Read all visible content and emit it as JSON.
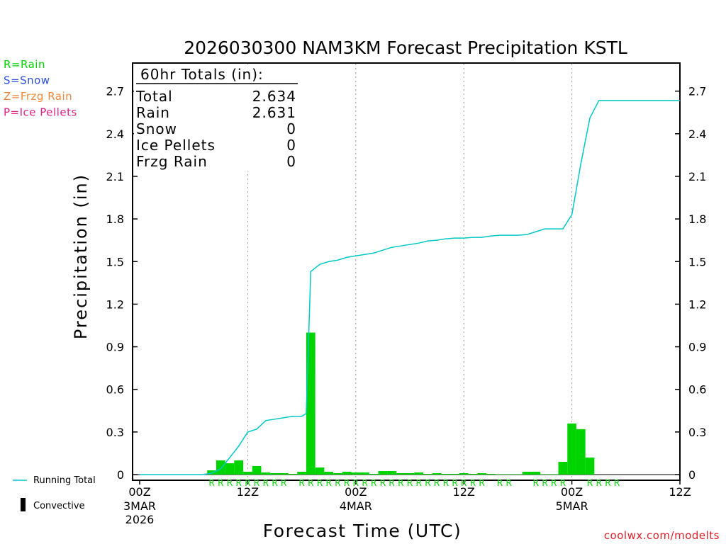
{
  "chart_data": {
    "type": "bar",
    "title": "2026030300 NAM3KM Forecast Precipitation KSTL",
    "xlabel": "Forecast Time (UTC)",
    "ylabel": "Precipitation (in)",
    "ylim": [
      0,
      2.85
    ],
    "yticks": [
      0,
      0.3,
      0.6,
      0.9,
      1.2,
      1.5,
      1.8,
      2.1,
      2.4,
      2.7
    ],
    "ytick_labels": [
      "0",
      "0.3",
      "0.6",
      "0.9",
      "1.2",
      "1.5",
      "1.8",
      "2.1",
      "2.4",
      "2.7"
    ],
    "xlim_hours": [
      0,
      60
    ],
    "xticks": [
      {
        "hour": 0,
        "label": "00Z",
        "date": "3MAR",
        "year": "2026"
      },
      {
        "hour": 12,
        "label": "12Z",
        "date": "",
        "year": ""
      },
      {
        "hour": 24,
        "label": "00Z",
        "date": "4MAR",
        "year": ""
      },
      {
        "hour": 36,
        "label": "12Z",
        "date": "",
        "year": ""
      },
      {
        "hour": 48,
        "label": "00Z",
        "date": "5MAR",
        "year": ""
      },
      {
        "hour": 60,
        "label": "12Z",
        "date": "",
        "year": ""
      }
    ],
    "gridlines_hours": [
      12,
      24,
      36,
      48
    ],
    "bars": {
      "name": "Hourly Precipitation",
      "color": "#00d400",
      "hours": [
        8,
        9,
        10,
        11,
        12,
        13,
        14,
        15,
        16,
        17,
        18,
        19,
        20,
        21,
        22,
        23,
        24,
        25,
        26,
        27,
        28,
        29,
        30,
        31,
        32,
        33,
        34,
        35,
        36,
        37,
        38,
        39,
        40,
        41,
        42,
        43,
        44,
        45,
        46,
        47,
        48,
        49,
        50,
        51,
        52,
        53,
        54,
        55,
        56,
        57,
        58,
        59,
        60
      ],
      "values": [
        0.03,
        0.1,
        0.08,
        0.1,
        0.02,
        0.06,
        0.015,
        0.01,
        0.01,
        0.005,
        0.02,
        1.0,
        0.05,
        0.02,
        0.01,
        0.02,
        0.015,
        0.015,
        0.005,
        0.025,
        0.025,
        0.01,
        0.01,
        0.015,
        0.005,
        0.01,
        0.005,
        0.005,
        0.01,
        0.005,
        0.01,
        0.005,
        0.003,
        0.003,
        0.003,
        0.02,
        0.02,
        0.003,
        0.003,
        0.09,
        0.36,
        0.32,
        0.12,
        0,
        0,
        0,
        0,
        0,
        0,
        0,
        0,
        0,
        0
      ]
    },
    "running_total": {
      "name": "Running Total",
      "color": "#00c8c8",
      "hours": [
        0,
        7,
        8,
        9,
        10,
        11,
        12,
        13,
        14,
        15,
        16,
        17,
        18,
        18.5,
        19,
        20,
        21,
        22,
        23,
        24,
        25,
        26,
        27,
        28,
        29,
        30,
        31,
        32,
        33,
        34,
        35,
        36,
        37,
        38,
        39,
        40,
        41,
        42,
        43,
        44,
        45,
        46,
        47,
        48,
        49,
        50,
        51,
        52,
        53,
        54,
        55,
        56,
        57,
        58,
        59,
        60
      ],
      "values": [
        0,
        0,
        0.01,
        0.04,
        0.12,
        0.2,
        0.3,
        0.32,
        0.38,
        0.39,
        0.4,
        0.41,
        0.41,
        0.43,
        1.43,
        1.48,
        1.5,
        1.51,
        1.53,
        1.54,
        1.55,
        1.56,
        1.58,
        1.6,
        1.61,
        1.62,
        1.63,
        1.645,
        1.65,
        1.66,
        1.665,
        1.665,
        1.67,
        1.67,
        1.68,
        1.685,
        1.685,
        1.685,
        1.69,
        1.71,
        1.73,
        1.73,
        1.73,
        1.83,
        2.19,
        2.51,
        2.634,
        2.634,
        2.634,
        2.634,
        2.634,
        2.634,
        2.634,
        2.634,
        2.634,
        2.634
      ]
    },
    "ptype_marks": {
      "color": "#00d400",
      "hours": [
        8,
        9,
        10,
        11,
        12,
        13,
        14,
        15,
        16,
        18,
        19,
        20,
        21,
        22,
        23,
        24,
        25,
        26,
        27,
        28,
        29,
        30,
        31,
        32,
        33,
        34,
        35,
        36,
        37,
        38,
        40,
        41,
        44,
        45,
        46,
        47,
        50,
        51,
        52,
        53
      ],
      "label": "R"
    },
    "totals_box": {
      "heading": "60hr Totals (in):",
      "rows": [
        {
          "label": "Total",
          "value": "2.634"
        },
        {
          "label": "Rain",
          "value": "2.631"
        },
        {
          "label": "Snow",
          "value": "0"
        },
        {
          "label": "Ice Pellets",
          "value": "0"
        },
        {
          "label": "Frzg Rain",
          "value": "0"
        }
      ]
    },
    "ptype_legend": [
      {
        "text": "R=Rain",
        "color": "#00d400"
      },
      {
        "text": "S=Snow",
        "color": "#2d4fe0"
      },
      {
        "text": "Z=Frzg Rain",
        "color": "#f0883a"
      },
      {
        "text": "P=Ice Pellets",
        "color": "#e0208a"
      }
    ],
    "series_legend": [
      {
        "text": "Running Total",
        "color": "#00c8c8",
        "kind": "line"
      },
      {
        "text": "Convective",
        "color": "#000000",
        "kind": "bar"
      }
    ],
    "credit": "coolwx.com/modelts"
  }
}
